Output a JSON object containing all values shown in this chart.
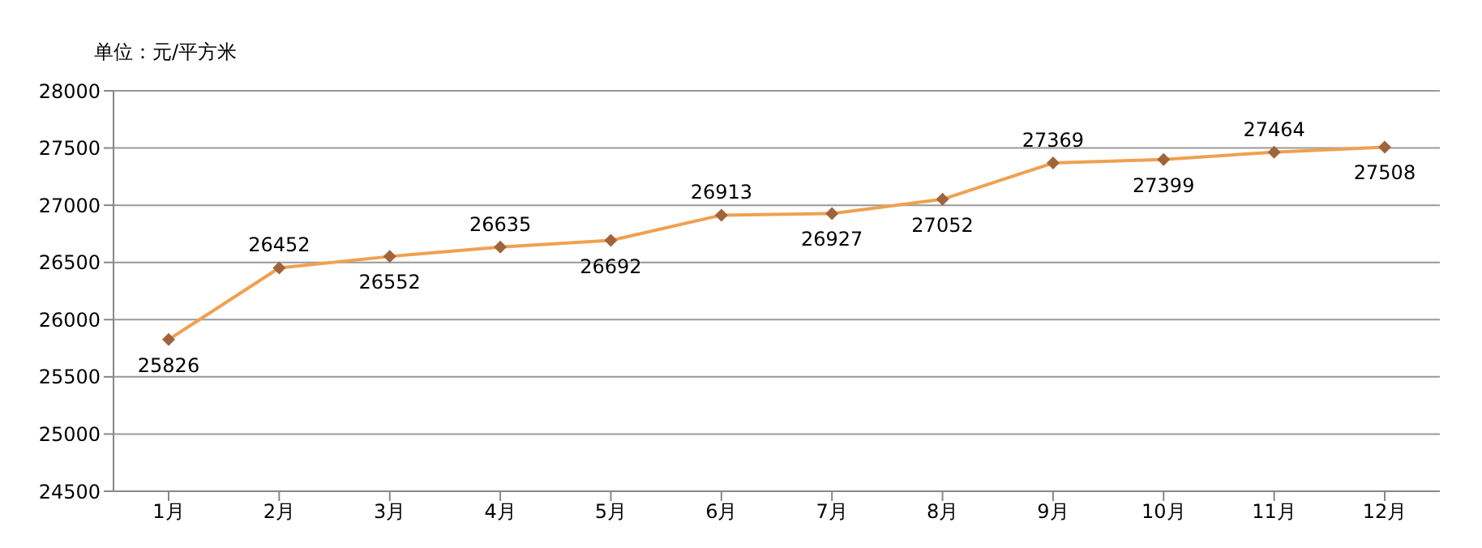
{
  "chart_data": {
    "type": "line",
    "ylabel": "单位：元/平方米",
    "categories": [
      "1月",
      "2月",
      "3月",
      "4月",
      "5月",
      "6月",
      "7月",
      "8月",
      "9月",
      "10月",
      "11月",
      "12月"
    ],
    "series": [
      {
        "color": "#f0a050",
        "values": [
          25826,
          26452,
          26552,
          26635,
          26692,
          26913,
          26927,
          27052,
          27369,
          27399,
          27464,
          27508
        ]
      }
    ],
    "ylim": [
      24500,
      28000
    ],
    "yticks": [
      24500,
      25000,
      25500,
      26000,
      26500,
      27000,
      27500,
      28000
    ],
    "grid": "y",
    "marker": "diamond",
    "data_labels": true,
    "legend": false
  }
}
